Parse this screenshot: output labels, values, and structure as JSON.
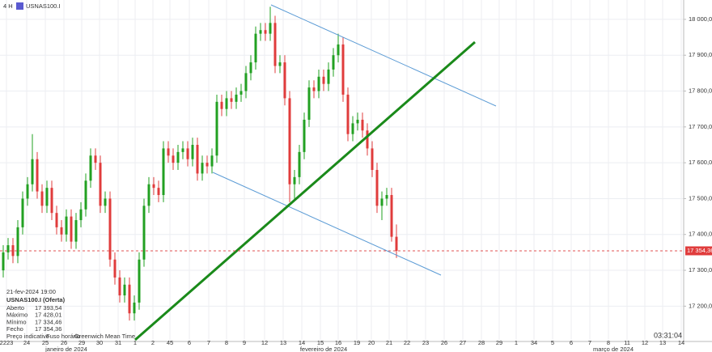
{
  "chart_data": {
    "type": "candlestick",
    "timeframe": "4 H",
    "symbol": "USNAS100.I",
    "ylim": [
      17106,
      18054
    ],
    "yticks": [
      {
        "value": 17200,
        "label": "17 200,00"
      },
      {
        "value": 17300,
        "label": "17 300,00"
      },
      {
        "value": 17400,
        "label": "17 400,00"
      },
      {
        "value": 17500,
        "label": "17 500,00"
      },
      {
        "value": 17600,
        "label": "17 600,00"
      },
      {
        "value": 17700,
        "label": "17 700,00"
      },
      {
        "value": 17800,
        "label": "17 800,00"
      },
      {
        "value": 17900,
        "label": "17 900,00"
      },
      {
        "value": 18000,
        "label": "18 000,00"
      }
    ],
    "x_labels": [
      "2223",
      "24",
      "25",
      "26",
      "29",
      "30",
      "31",
      "1",
      "2",
      "45",
      "6",
      "7",
      "8",
      "9",
      "12",
      "13",
      "14",
      "15",
      "16",
      "19",
      "20",
      "21",
      "22",
      "23",
      "26",
      "27",
      "28",
      "29",
      "1",
      "34",
      "5",
      "6",
      "7",
      "8",
      "11",
      "12",
      "13",
      "14"
    ],
    "month_labels": [
      "janeiro de 2024",
      "fevereiro de 2024",
      "março de 2024"
    ],
    "up_color": "#22a022",
    "down_color": "#e03c3c",
    "candles": {
      "open": [
        17300,
        17350,
        17370,
        17340,
        17420,
        17500,
        17540,
        17610,
        17520,
        17480,
        17530,
        17460,
        17420,
        17400,
        17450,
        17380,
        17440,
        17470,
        17550,
        17620,
        17600,
        17480,
        17500,
        17330,
        17280,
        17230,
        17260,
        17180,
        17210,
        17330,
        17480,
        17540,
        17530,
        17510,
        17640,
        17620,
        17600,
        17630,
        17640,
        17610,
        17650,
        17570,
        17600,
        17590,
        17620,
        17770,
        17750,
        17780,
        17770,
        17790,
        17800,
        17850,
        17880,
        17960,
        17970,
        17960,
        17990,
        17870,
        17880,
        17780,
        17540,
        17560,
        17630,
        17720,
        17810,
        17800,
        17840,
        17820,
        17860,
        17900,
        17930,
        17790,
        17680,
        17710,
        17720,
        17690,
        17640,
        17580,
        17480,
        17500,
        17510,
        17393.54
      ],
      "high": [
        17370,
        17390,
        17390,
        17440,
        17520,
        17560,
        17680,
        17630,
        17540,
        17550,
        17550,
        17480,
        17440,
        17470,
        17470,
        17460,
        17490,
        17570,
        17640,
        17640,
        17620,
        17520,
        17520,
        17350,
        17300,
        17280,
        17280,
        17230,
        17350,
        17500,
        17560,
        17560,
        17550,
        17660,
        17660,
        17640,
        17650,
        17660,
        17660,
        17670,
        17670,
        17620,
        17620,
        17640,
        17790,
        17790,
        17800,
        17800,
        17810,
        17820,
        17870,
        17900,
        17980,
        17990,
        17990,
        18035,
        18010,
        17900,
        17900,
        17800,
        17580,
        17650,
        17740,
        17830,
        17830,
        17860,
        17860,
        17880,
        17920,
        17960,
        17950,
        17810,
        17730,
        17740,
        17740,
        17710,
        17660,
        17600,
        17520,
        17530,
        17530,
        17428.01
      ],
      "low": [
        17280,
        17330,
        17320,
        17320,
        17400,
        17480,
        17520,
        17500,
        17460,
        17460,
        17440,
        17400,
        17380,
        17380,
        17360,
        17360,
        17420,
        17450,
        17530,
        17580,
        17460,
        17460,
        17310,
        17260,
        17210,
        17210,
        17160,
        17160,
        17190,
        17310,
        17460,
        17510,
        17490,
        17490,
        17600,
        17580,
        17580,
        17610,
        17590,
        17590,
        17550,
        17550,
        17570,
        17570,
        17600,
        17730,
        17730,
        17750,
        17750,
        17770,
        17780,
        17830,
        17860,
        17940,
        17940,
        17940,
        17850,
        17850,
        17760,
        17490,
        17500,
        17540,
        17610,
        17700,
        17780,
        17780,
        17800,
        17800,
        17840,
        17880,
        17770,
        17660,
        17660,
        17690,
        17670,
        17620,
        17560,
        17460,
        17440,
        17480,
        17380,
        17334.46
      ],
      "close": [
        17350,
        17370,
        17340,
        17420,
        17500,
        17540,
        17610,
        17520,
        17480,
        17530,
        17460,
        17420,
        17400,
        17450,
        17380,
        17440,
        17470,
        17550,
        17620,
        17600,
        17480,
        17500,
        17330,
        17280,
        17230,
        17260,
        17180,
        17210,
        17330,
        17480,
        17540,
        17530,
        17510,
        17640,
        17620,
        17600,
        17630,
        17640,
        17610,
        17650,
        17570,
        17600,
        17590,
        17620,
        17770,
        17750,
        17780,
        17770,
        17790,
        17800,
        17850,
        17880,
        17960,
        17970,
        17960,
        17990,
        17870,
        17880,
        17780,
        17540,
        17560,
        17630,
        17720,
        17810,
        17800,
        17840,
        17820,
        17860,
        17900,
        17930,
        17790,
        17680,
        17710,
        17720,
        17690,
        17640,
        17580,
        17480,
        17500,
        17510,
        17393.54,
        17354.36
      ]
    },
    "current_price": {
      "value": 17354.36,
      "label": "17 354,36"
    },
    "info": {
      "date": "21-fev-2024 19:00",
      "instrument": "USNAS100.I (Oferta)",
      "rows": [
        {
          "label": "Aberto",
          "value": "17 393,54"
        },
        {
          "label": "Máximo",
          "value": "17 428,01"
        },
        {
          "label": "Mínimo",
          "value": "17 334,46"
        },
        {
          "label": "Fecho",
          "value": "17 354,36"
        }
      ],
      "footer": [
        "Preço indicativo",
        "Fuso horário",
        "Greenwich Mean Time"
      ]
    },
    "clock": "03:31:04"
  }
}
